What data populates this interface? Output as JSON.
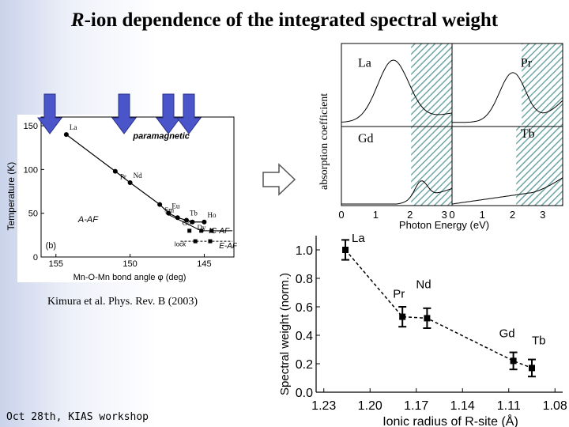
{
  "slide": {
    "title_italic": "R",
    "title_rest": "-ion dependence of the integrated spectral weight",
    "citation": "Kimura et al. Phys. Rev. B (2003)",
    "footer": "Oct 28th, KIAS workshop"
  },
  "colors": {
    "arrow": "#4a55c9",
    "hatch": "#6fa6a6",
    "background": "#dde3f3"
  },
  "chart_data": [
    {
      "type": "line",
      "role": "phase-diagram",
      "xlabel": "Mn-O-Mn bond angle  φ  (deg)",
      "ylabel": "Temperature (K)",
      "xlim": [
        156,
        143
      ],
      "ylim": [
        0,
        160
      ],
      "xticks": [
        155,
        150,
        145
      ],
      "yticks": [
        0,
        50,
        100,
        150
      ],
      "annotations": [
        "paramagnetic",
        "A-AF",
        "IC-AF",
        "E-AF",
        "(b)",
        "lock"
      ],
      "points": [
        {
          "label": "La",
          "x": 154.3,
          "y": 140
        },
        {
          "label": "Pr",
          "x": 151.0,
          "y": 98
        },
        {
          "label": "Nd",
          "x": 150.0,
          "y": 85
        },
        {
          "label": "Sm",
          "x": 148.0,
          "y": 60
        },
        {
          "label": "Eu",
          "x": 147.4,
          "y": 50
        },
        {
          "label": "Gd",
          "x": 146.8,
          "y": 45
        },
        {
          "label": "Tb",
          "x": 146.2,
          "y": 42
        },
        {
          "label": "Dy",
          "x": 145.8,
          "y": 40
        },
        {
          "label": "Ho",
          "x": 145.0,
          "y": 40
        }
      ]
    },
    {
      "type": "area",
      "role": "absorption-spectra",
      "ylabel": "absorption coefficient",
      "xlabel": "Photon Energy (eV)",
      "xticks_left": [
        "0",
        "1",
        "2",
        "3"
      ],
      "xticks_right": [
        "0",
        "1",
        "2",
        "3"
      ],
      "panels": [
        "La",
        "Pr",
        "Gd",
        "Tb"
      ]
    },
    {
      "type": "line",
      "role": "spectral-weight",
      "xlabel": "Ionic radius of R-site (Å)",
      "ylabel": "Spectral weight (norm.)",
      "xlim": [
        1.235,
        1.075
      ],
      "ylim": [
        0.0,
        1.1
      ],
      "xticks": [
        "1.23",
        "1.20",
        "1.17",
        "1.14",
        "1.11",
        "1.08"
      ],
      "yticks": [
        "0.0",
        "0.2",
        "0.4",
        "0.6",
        "0.8",
        "1.0"
      ],
      "series": [
        {
          "points": [
            {
              "label": "La",
              "x": 1.216,
              "y": 1.0,
              "err": 0.07
            },
            {
              "label": "Pr",
              "x": 1.179,
              "y": 0.53,
              "err": 0.07
            },
            {
              "label": "Nd",
              "x": 1.163,
              "y": 0.52,
              "err": 0.07
            },
            {
              "label": "Gd",
              "x": 1.107,
              "y": 0.22,
              "err": 0.06
            },
            {
              "label": "Tb",
              "x": 1.095,
              "y": 0.17,
              "err": 0.06
            }
          ]
        }
      ]
    }
  ]
}
